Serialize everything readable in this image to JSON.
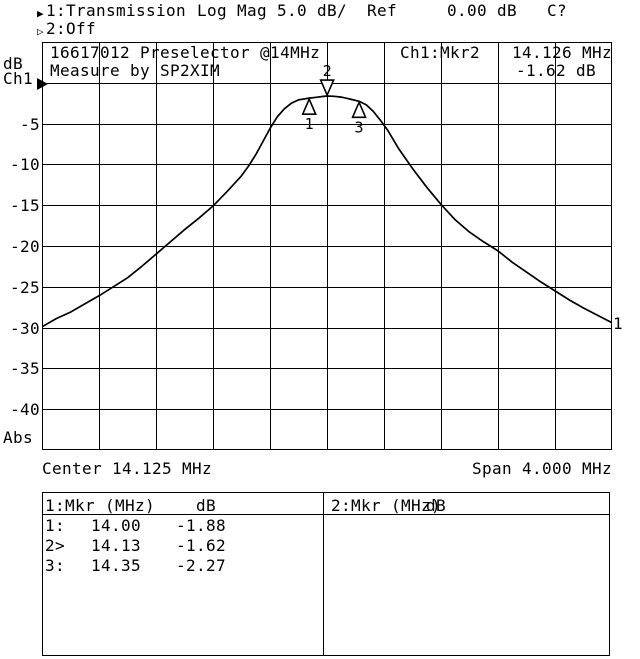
{
  "colors": {
    "fg": "#000000",
    "bg": "#ffffff"
  },
  "header": {
    "trace1": {
      "icon": "▶",
      "label": "1:Transmission"
    },
    "trace2": {
      "icon": "▷",
      "label": "2:Off"
    },
    "format": "Log Mag",
    "scale": "5.0 dB/",
    "ref_label": "Ref",
    "ref_value": "0.00 dB",
    "cal_status": "C?"
  },
  "graph": {
    "title_line1": "16617012 Preselector @14MHz",
    "title_line2": "Measure by SP2XIM",
    "marker_readout": {
      "channel": "Ch1:Mkr2",
      "freq": "14.126 MHz",
      "level": "-1.62 dB"
    },
    "y_axis": {
      "unit": "dB",
      "channel": "Ch1",
      "labels": [
        "-5",
        "-10",
        "-15",
        "-20",
        "-25",
        "-30",
        "-35",
        "-40"
      ],
      "bottom_label": "Abs"
    },
    "x_axis": {
      "center": "Center 14.125 MHz",
      "span": "Span 4.000 MHz"
    },
    "trace_number": "1"
  },
  "chart_data": {
    "type": "line",
    "title": "16617012 Preselector @14MHz",
    "xlabel": "Frequency (MHz), Center 14.125 MHz, Span 4.000 MHz",
    "ylabel": "Transmission (dB), 5.0 dB/div, Ref 0.00 dB",
    "x_range": [
      12.125,
      16.125
    ],
    "y_range": [
      -45,
      5
    ],
    "y_per_div": 5,
    "grid": {
      "cols": 10,
      "rows": 10
    },
    "x": [
      12.125,
      12.225,
      12.325,
      12.425,
      12.525,
      12.625,
      12.725,
      12.825,
      12.925,
      13.025,
      13.125,
      13.225,
      13.325,
      13.425,
      13.525,
      13.575,
      13.625,
      13.675,
      13.725,
      13.775,
      13.825,
      13.875,
      13.925,
      13.975,
      14.0,
      14.05,
      14.1,
      14.126,
      14.175,
      14.225,
      14.275,
      14.3,
      14.35,
      14.4,
      14.45,
      14.5,
      14.55,
      14.625,
      14.725,
      14.825,
      14.925,
      15.025,
      15.125,
      15.225,
      15.325,
      15.425,
      15.525,
      15.625,
      15.725,
      15.825,
      15.925,
      16.025,
      16.125
    ],
    "y": [
      -29.9,
      -28.9,
      -28.1,
      -27.1,
      -26.1,
      -25.0,
      -23.9,
      -22.5,
      -21.0,
      -19.5,
      -18.0,
      -16.6,
      -15.1,
      -13.3,
      -11.4,
      -10.2,
      -8.8,
      -7.2,
      -5.6,
      -4.2,
      -3.2,
      -2.5,
      -2.1,
      -1.95,
      -1.88,
      -1.78,
      -1.67,
      -1.62,
      -1.65,
      -1.75,
      -1.95,
      -2.05,
      -2.27,
      -2.7,
      -3.5,
      -4.6,
      -5.8,
      -8.0,
      -10.5,
      -12.8,
      -14.9,
      -16.8,
      -18.3,
      -19.5,
      -20.6,
      -22.0,
      -23.2,
      -24.4,
      -25.5,
      -26.6,
      -27.6,
      -28.5,
      -29.4
    ],
    "markers": [
      {
        "n": "1",
        "freq": 14.0,
        "db": -1.88,
        "style": "below"
      },
      {
        "n": "2",
        "freq": 14.126,
        "db": -1.62,
        "style": "above",
        "active": true
      },
      {
        "n": "3",
        "freq": 14.35,
        "db": -2.27,
        "style": "below"
      }
    ]
  },
  "marker_table": {
    "panel1": {
      "header_label": "1:Mkr (MHz)",
      "header_unit": "dB",
      "rows": [
        {
          "label": "1:",
          "freq": "14.00",
          "db": "-1.88"
        },
        {
          "label": "2>",
          "freq": "14.13",
          "db": "-1.62"
        },
        {
          "label": "3:",
          "freq": "14.35",
          "db": "-2.27"
        }
      ]
    },
    "panel2": {
      "header_label": "2:Mkr (MHz)",
      "header_unit": "dB"
    }
  }
}
